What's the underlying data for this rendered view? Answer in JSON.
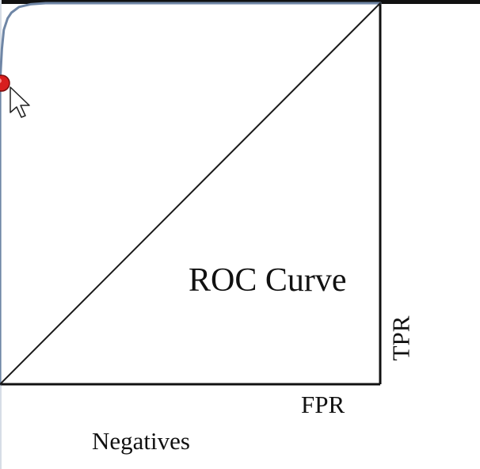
{
  "chart_data": {
    "type": "line",
    "title": "ROC Curve",
    "xlabel": "FPR",
    "ylabel": "TPR",
    "caption": "Negatives",
    "xlim": [
      0,
      1
    ],
    "ylim": [
      0,
      1
    ],
    "grid": false,
    "series": [
      {
        "x": [
          0.0,
          0.0,
          0.005,
          0.01,
          0.02,
          0.03,
          0.05,
          0.08,
          0.12,
          0.2,
          0.35,
          0.6,
          1.0
        ],
        "y": [
          0.0,
          0.79,
          0.88,
          0.93,
          0.96,
          0.975,
          0.99,
          0.997,
          1.0,
          1.0,
          1.0,
          1.0,
          1.0
        ],
        "color": "#6f86a6"
      },
      {
        "x": [
          0,
          1
        ],
        "y": [
          0,
          1
        ],
        "color": "#1a1a1a"
      }
    ],
    "highlight_point": {
      "x": 0.0,
      "y": 0.79,
      "color": "#d81e1e"
    }
  },
  "ui": {
    "cursor_icon": "arrow-cursor-icon"
  }
}
